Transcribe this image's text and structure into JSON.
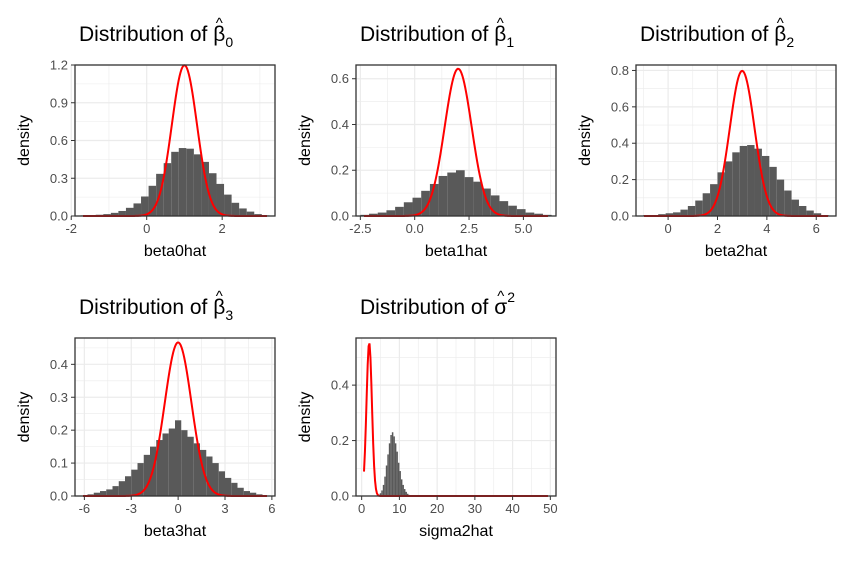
{
  "colors": {
    "bar": "#595959",
    "curve": "#ff0000",
    "grid": "#ebebeb",
    "panel_border": "#333333",
    "tick_text": "#4d4d4d",
    "text": "#000000"
  },
  "chart_data": [
    {
      "type": "bar",
      "title_prefix": "Distribution of ",
      "title_symbol": "β",
      "title_hat": "^",
      "title_script": "0",
      "title_script_kind": "sub",
      "xlabel": "beta0hat",
      "ylabel": "density",
      "xlim": [
        -1.9,
        3.4
      ],
      "ylim": [
        0,
        1.2
      ],
      "xticks": [
        "-2",
        "0",
        "2"
      ],
      "xtick_values": [
        -2,
        0,
        2
      ],
      "yticks": [
        "0.0",
        "0.3",
        "0.6",
        "0.9",
        "1.2"
      ],
      "ytick_values": [
        0,
        0.3,
        0.6,
        0.9,
        1.2
      ],
      "hist": {
        "x": [
          -1.65,
          -1.45,
          -1.25,
          -1.05,
          -0.85,
          -0.65,
          -0.45,
          -0.25,
          -0.05,
          0.15,
          0.35,
          0.55,
          0.75,
          0.95,
          1.15,
          1.35,
          1.55,
          1.75,
          1.95,
          2.15,
          2.35,
          2.55,
          2.75,
          2.95,
          3.15
        ],
        "values": [
          0.005,
          0.005,
          0.01,
          0.015,
          0.025,
          0.04,
          0.065,
          0.1,
          0.155,
          0.24,
          0.335,
          0.42,
          0.51,
          0.54,
          0.535,
          0.49,
          0.43,
          0.34,
          0.255,
          0.17,
          0.105,
          0.06,
          0.035,
          0.015,
          0.005
        ],
        "binwidth": 0.2
      },
      "curve": {
        "mean": 1.0,
        "sd": 0.333
      }
    },
    {
      "type": "bar",
      "title_prefix": "Distribution of ",
      "title_symbol": "β",
      "title_hat": "^",
      "title_script": "1",
      "title_script_kind": "sub",
      "xlabel": "beta1hat",
      "ylabel": "density",
      "xlim": [
        -2.7,
        6.5
      ],
      "ylim": [
        0,
        0.66
      ],
      "xticks": [
        "-2.5",
        "0.0",
        "2.5",
        "5.0"
      ],
      "xtick_values": [
        -2.5,
        0,
        2.5,
        5
      ],
      "yticks": [
        "0.0",
        "0.2",
        "0.4",
        "0.6"
      ],
      "ytick_values": [
        0,
        0.2,
        0.4,
        0.6
      ],
      "hist": {
        "x": [
          -2.3,
          -1.9,
          -1.5,
          -1.1,
          -0.7,
          -0.3,
          0.1,
          0.5,
          0.9,
          1.3,
          1.7,
          2.1,
          2.5,
          2.9,
          3.3,
          3.7,
          4.1,
          4.5,
          4.9,
          5.3,
          5.7,
          6.1
        ],
        "values": [
          0.005,
          0.01,
          0.015,
          0.025,
          0.04,
          0.06,
          0.08,
          0.11,
          0.14,
          0.175,
          0.19,
          0.2,
          0.17,
          0.15,
          0.12,
          0.09,
          0.065,
          0.045,
          0.03,
          0.015,
          0.01,
          0.005
        ],
        "binwidth": 0.4
      },
      "curve": {
        "mean": 2.0,
        "sd": 0.62
      }
    },
    {
      "type": "bar",
      "title_prefix": "Distribution of ",
      "title_symbol": "β",
      "title_hat": "^",
      "title_script": "2",
      "title_script_kind": "sub",
      "xlabel": "beta2hat",
      "ylabel": "density",
      "xlim": [
        -1.3,
        6.8
      ],
      "ylim": [
        0,
        0.83
      ],
      "xticks": [
        "0",
        "2",
        "4",
        "6"
      ],
      "xtick_values": [
        0,
        2,
        4,
        6
      ],
      "yticks": [
        "0.0",
        "0.2",
        "0.4",
        "0.6",
        "0.8"
      ],
      "ytick_values": [
        0,
        0.2,
        0.4,
        0.6,
        0.8
      ],
      "hist": {
        "x": [
          -0.85,
          -0.55,
          -0.25,
          0.05,
          0.35,
          0.65,
          0.95,
          1.25,
          1.55,
          1.85,
          2.15,
          2.45,
          2.75,
          3.05,
          3.35,
          3.65,
          3.95,
          4.25,
          4.55,
          4.85,
          5.15,
          5.45,
          5.75,
          6.05,
          6.35
        ],
        "values": [
          0.005,
          0.005,
          0.01,
          0.015,
          0.02,
          0.035,
          0.055,
          0.085,
          0.125,
          0.175,
          0.24,
          0.3,
          0.35,
          0.385,
          0.39,
          0.37,
          0.33,
          0.27,
          0.2,
          0.14,
          0.09,
          0.055,
          0.03,
          0.015,
          0.005
        ],
        "binwidth": 0.3
      },
      "curve": {
        "mean": 3.0,
        "sd": 0.5
      }
    },
    {
      "type": "bar",
      "title_prefix": "Distribution of ",
      "title_symbol": "β",
      "title_hat": "^",
      "title_script": "3",
      "title_script_kind": "sub",
      "xlabel": "beta3hat",
      "ylabel": "density",
      "xlim": [
        -6.6,
        6.2
      ],
      "ylim": [
        0,
        0.48
      ],
      "xticks": [
        "-6",
        "-3",
        "0",
        "3",
        "6"
      ],
      "xtick_values": [
        -6,
        -3,
        0,
        3,
        6
      ],
      "yticks": [
        "0.0",
        "0.1",
        "0.2",
        "0.3",
        "0.4"
      ],
      "ytick_values": [
        0,
        0.1,
        0.2,
        0.3,
        0.4
      ],
      "hist": {
        "x": [
          -5.6,
          -5.2,
          -4.8,
          -4.4,
          -4.0,
          -3.6,
          -3.2,
          -2.8,
          -2.4,
          -2.0,
          -1.6,
          -1.2,
          -0.8,
          -0.4,
          0.0,
          0.4,
          0.8,
          1.2,
          1.6,
          2.0,
          2.4,
          2.8,
          3.2,
          3.6,
          4.0,
          4.4,
          4.8,
          5.2
        ],
        "values": [
          0.005,
          0.01,
          0.015,
          0.02,
          0.03,
          0.045,
          0.06,
          0.08,
          0.1,
          0.125,
          0.15,
          0.17,
          0.19,
          0.205,
          0.23,
          0.2,
          0.18,
          0.16,
          0.14,
          0.12,
          0.1,
          0.075,
          0.055,
          0.04,
          0.025,
          0.015,
          0.01,
          0.005
        ],
        "binwidth": 0.4
      },
      "curve": {
        "mean": 0.0,
        "sd": 0.855
      }
    },
    {
      "type": "bar",
      "title_prefix": "Distribution of ",
      "title_symbol": "σ",
      "title_hat": "^",
      "title_script": "2",
      "title_script_kind": "sup",
      "xlabel": "sigma2hat",
      "ylabel": "density",
      "xlim": [
        -1.5,
        51.5
      ],
      "ylim": [
        0,
        0.57
      ],
      "xticks": [
        "0",
        "10",
        "20",
        "30",
        "40",
        "50"
      ],
      "xtick_values": [
        0,
        10,
        20,
        30,
        40,
        50
      ],
      "yticks": [
        "0.0",
        "0.2",
        "0.4"
      ],
      "ytick_values": [
        0,
        0.2,
        0.4
      ],
      "hist": {
        "x": [
          4.6,
          5.0,
          5.4,
          5.8,
          6.2,
          6.6,
          7.0,
          7.4,
          7.8,
          8.2,
          8.6,
          9.0,
          9.4,
          9.8,
          10.2,
          10.6,
          11.0,
          11.4,
          11.8,
          12.2,
          12.6,
          13.0
        ],
        "values": [
          0.005,
          0.01,
          0.02,
          0.04,
          0.07,
          0.11,
          0.15,
          0.19,
          0.22,
          0.23,
          0.215,
          0.19,
          0.16,
          0.12,
          0.09,
          0.06,
          0.04,
          0.025,
          0.015,
          0.008,
          0.004,
          0.002
        ],
        "binwidth": 0.4
      },
      "curve": {
        "mean": 2.0,
        "sd": 0.72
      }
    }
  ]
}
